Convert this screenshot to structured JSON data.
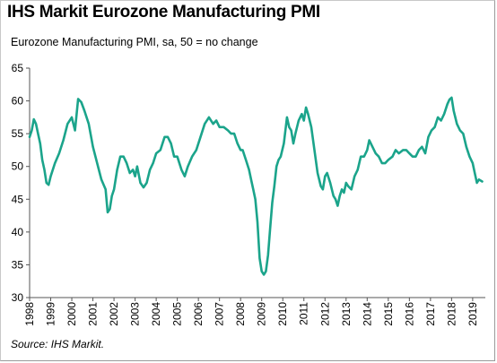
{
  "header": {
    "title": "IHS Markit Eurozone Manufacturing PMI",
    "subtitle": "Eurozone Manufacturing PMI, sa, 50 = no change"
  },
  "footer": {
    "source": "Source: IHS Markit."
  },
  "colors": {
    "series": "#1ba48b",
    "axis": "#555555",
    "text": "#000000"
  },
  "chart_data": {
    "type": "line",
    "title": "IHS Markit Eurozone Manufacturing PMI",
    "subtitle": "Eurozone Manufacturing PMI, sa, 50 = no change",
    "xlabel": "",
    "ylabel": "",
    "ylim": [
      30,
      65
    ],
    "xlim": [
      1998.0,
      2019.6
    ],
    "grid": false,
    "yticks": [
      "30",
      "35",
      "40",
      "45",
      "50",
      "55",
      "60",
      "65"
    ],
    "xticks": [
      "1998",
      "1999",
      "2000",
      "2001",
      "2002",
      "2003",
      "2004",
      "2005",
      "2006",
      "2007",
      "2008",
      "2009",
      "2010",
      "2011",
      "2012",
      "2013",
      "2014",
      "2015",
      "2016",
      "2017",
      "2018",
      "2019"
    ],
    "series": [
      {
        "values": [
          [
            1998.0,
            54.5
          ],
          [
            1998.1,
            55.5
          ],
          [
            1998.2,
            57.2
          ],
          [
            1998.3,
            56.5
          ],
          [
            1998.4,
            55.0
          ],
          [
            1998.5,
            53.5
          ],
          [
            1998.6,
            51.0
          ],
          [
            1998.7,
            49.5
          ],
          [
            1998.8,
            47.5
          ],
          [
            1998.9,
            47.2
          ],
          [
            1999.0,
            48.5
          ],
          [
            1999.2,
            50.5
          ],
          [
            1999.4,
            52.0
          ],
          [
            1999.6,
            54.0
          ],
          [
            1999.8,
            56.5
          ],
          [
            2000.0,
            57.5
          ],
          [
            2000.15,
            55.5
          ],
          [
            2000.3,
            60.3
          ],
          [
            2000.45,
            59.8
          ],
          [
            2000.6,
            58.5
          ],
          [
            2000.8,
            56.5
          ],
          [
            2001.0,
            53.0
          ],
          [
            2001.2,
            50.5
          ],
          [
            2001.4,
            48.0
          ],
          [
            2001.6,
            46.5
          ],
          [
            2001.7,
            43.0
          ],
          [
            2001.8,
            43.5
          ],
          [
            2001.9,
            45.5
          ],
          [
            2002.0,
            46.5
          ],
          [
            2002.15,
            49.5
          ],
          [
            2002.3,
            51.5
          ],
          [
            2002.45,
            51.5
          ],
          [
            2002.6,
            50.5
          ],
          [
            2002.75,
            49.0
          ],
          [
            2002.9,
            49.5
          ],
          [
            2003.0,
            48.5
          ],
          [
            2003.1,
            50.0
          ],
          [
            2003.25,
            47.5
          ],
          [
            2003.4,
            46.8
          ],
          [
            2003.55,
            47.5
          ],
          [
            2003.7,
            49.5
          ],
          [
            2003.85,
            50.5
          ],
          [
            2004.0,
            52.0
          ],
          [
            2004.2,
            52.5
          ],
          [
            2004.4,
            54.5
          ],
          [
            2004.55,
            54.5
          ],
          [
            2004.7,
            53.5
          ],
          [
            2004.85,
            51.5
          ],
          [
            2005.0,
            51.5
          ],
          [
            2005.2,
            49.5
          ],
          [
            2005.35,
            48.5
          ],
          [
            2005.5,
            50.0
          ],
          [
            2005.7,
            51.5
          ],
          [
            2005.9,
            52.5
          ],
          [
            2006.1,
            54.5
          ],
          [
            2006.3,
            56.5
          ],
          [
            2006.5,
            57.5
          ],
          [
            2006.7,
            56.5
          ],
          [
            2006.85,
            57.0
          ],
          [
            2007.0,
            56.0
          ],
          [
            2007.2,
            56.0
          ],
          [
            2007.4,
            55.5
          ],
          [
            2007.55,
            55.0
          ],
          [
            2007.7,
            55.0
          ],
          [
            2007.85,
            53.5
          ],
          [
            2008.0,
            52.5
          ],
          [
            2008.1,
            52.5
          ],
          [
            2008.25,
            51.0
          ],
          [
            2008.4,
            49.5
          ],
          [
            2008.5,
            48.0
          ],
          [
            2008.6,
            46.5
          ],
          [
            2008.7,
            45.0
          ],
          [
            2008.8,
            41.5
          ],
          [
            2008.9,
            36.0
          ],
          [
            2009.0,
            34.0
          ],
          [
            2009.1,
            33.5
          ],
          [
            2009.2,
            34.0
          ],
          [
            2009.3,
            36.5
          ],
          [
            2009.4,
            40.5
          ],
          [
            2009.5,
            44.5
          ],
          [
            2009.6,
            47.0
          ],
          [
            2009.7,
            50.0
          ],
          [
            2009.8,
            51.0
          ],
          [
            2009.9,
            51.5
          ],
          [
            2010.05,
            53.5
          ],
          [
            2010.2,
            57.5
          ],
          [
            2010.3,
            56.0
          ],
          [
            2010.4,
            55.5
          ],
          [
            2010.5,
            53.5
          ],
          [
            2010.6,
            55.0
          ],
          [
            2010.75,
            57.0
          ],
          [
            2010.9,
            58.0
          ],
          [
            2011.0,
            57.0
          ],
          [
            2011.1,
            59.0
          ],
          [
            2011.2,
            58.0
          ],
          [
            2011.35,
            56.0
          ],
          [
            2011.5,
            52.5
          ],
          [
            2011.65,
            49.0
          ],
          [
            2011.8,
            47.0
          ],
          [
            2011.9,
            46.5
          ],
          [
            2012.0,
            48.5
          ],
          [
            2012.1,
            49.0
          ],
          [
            2012.25,
            47.5
          ],
          [
            2012.4,
            45.5
          ],
          [
            2012.5,
            45.0
          ],
          [
            2012.6,
            44.0
          ],
          [
            2012.7,
            45.5
          ],
          [
            2012.8,
            46.5
          ],
          [
            2012.9,
            46.0
          ],
          [
            2013.0,
            47.5
          ],
          [
            2013.1,
            47.0
          ],
          [
            2013.25,
            46.5
          ],
          [
            2013.4,
            48.5
          ],
          [
            2013.55,
            49.5
          ],
          [
            2013.7,
            51.5
          ],
          [
            2013.85,
            51.5
          ],
          [
            2014.0,
            52.5
          ],
          [
            2014.1,
            54.0
          ],
          [
            2014.25,
            53.0
          ],
          [
            2014.4,
            52.0
          ],
          [
            2014.55,
            51.5
          ],
          [
            2014.7,
            50.5
          ],
          [
            2014.85,
            50.5
          ],
          [
            2015.0,
            51.0
          ],
          [
            2015.2,
            51.5
          ],
          [
            2015.35,
            52.5
          ],
          [
            2015.5,
            52.0
          ],
          [
            2015.7,
            52.5
          ],
          [
            2015.85,
            52.5
          ],
          [
            2016.0,
            52.0
          ],
          [
            2016.15,
            51.5
          ],
          [
            2016.3,
            51.5
          ],
          [
            2016.45,
            52.5
          ],
          [
            2016.6,
            53.0
          ],
          [
            2016.75,
            52.0
          ],
          [
            2016.9,
            54.5
          ],
          [
            2017.05,
            55.5
          ],
          [
            2017.2,
            56.0
          ],
          [
            2017.35,
            57.5
          ],
          [
            2017.5,
            57.0
          ],
          [
            2017.65,
            58.0
          ],
          [
            2017.8,
            59.5
          ],
          [
            2017.9,
            60.2
          ],
          [
            2018.0,
            60.5
          ],
          [
            2018.1,
            58.5
          ],
          [
            2018.25,
            56.5
          ],
          [
            2018.4,
            55.5
          ],
          [
            2018.55,
            55.0
          ],
          [
            2018.7,
            53.0
          ],
          [
            2018.85,
            51.5
          ],
          [
            2019.0,
            50.5
          ],
          [
            2019.1,
            49.0
          ],
          [
            2019.2,
            47.5
          ],
          [
            2019.3,
            48.0
          ],
          [
            2019.45,
            47.7
          ]
        ]
      }
    ]
  }
}
